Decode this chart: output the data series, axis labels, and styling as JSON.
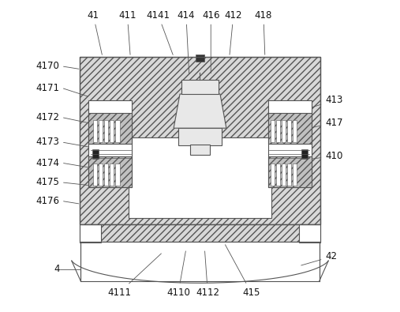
{
  "bg_color": "#ffffff",
  "line_color": "#555555",
  "fill_light": "#d8d8d8",
  "fill_white": "#ffffff",
  "font_size": 8.5
}
